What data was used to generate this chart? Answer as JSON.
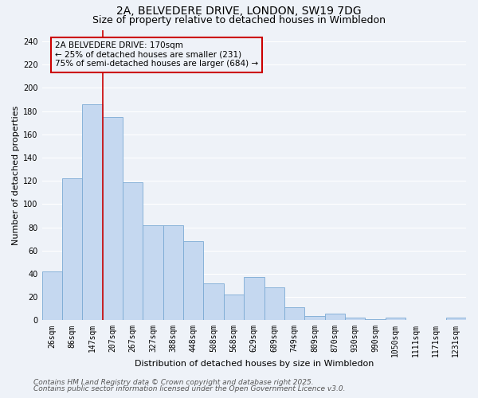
{
  "title1": "2A, BELVEDERE DRIVE, LONDON, SW19 7DG",
  "title2": "Size of property relative to detached houses in Wimbledon",
  "xlabel": "Distribution of detached houses by size in Wimbledon",
  "ylabel": "Number of detached properties",
  "annotation_line1": "2A BELVEDERE DRIVE: 170sqm",
  "annotation_line2": "← 25% of detached houses are smaller (231)",
  "annotation_line3": "75% of semi-detached houses are larger (684) →",
  "footer1": "Contains HM Land Registry data © Crown copyright and database right 2025.",
  "footer2": "Contains public sector information licensed under the Open Government Licence v3.0.",
  "bin_labels": [
    "26sqm",
    "86sqm",
    "147sqm",
    "207sqm",
    "267sqm",
    "327sqm",
    "388sqm",
    "448sqm",
    "508sqm",
    "568sqm",
    "629sqm",
    "689sqm",
    "749sqm",
    "809sqm",
    "870sqm",
    "930sqm",
    "990sqm",
    "1050sqm",
    "1111sqm",
    "1171sqm",
    "1231sqm"
  ],
  "bar_values": [
    42,
    122,
    186,
    175,
    119,
    82,
    82,
    68,
    32,
    22,
    37,
    28,
    11,
    4,
    6,
    2,
    1,
    2,
    0,
    0,
    2
  ],
  "bar_color": "#c5d8f0",
  "bar_edge_color": "#7baad4",
  "red_line_index": 2,
  "ylim": [
    0,
    250
  ],
  "yticks": [
    0,
    20,
    40,
    60,
    80,
    100,
    120,
    140,
    160,
    180,
    200,
    220,
    240
  ],
  "background_color": "#eef2f8",
  "grid_color": "#ffffff",
  "annotation_box_color": "#cc0000",
  "title_fontsize": 10,
  "subtitle_fontsize": 9,
  "axis_label_fontsize": 8,
  "tick_fontsize": 7,
  "annotation_fontsize": 7.5,
  "footer_fontsize": 6.5
}
